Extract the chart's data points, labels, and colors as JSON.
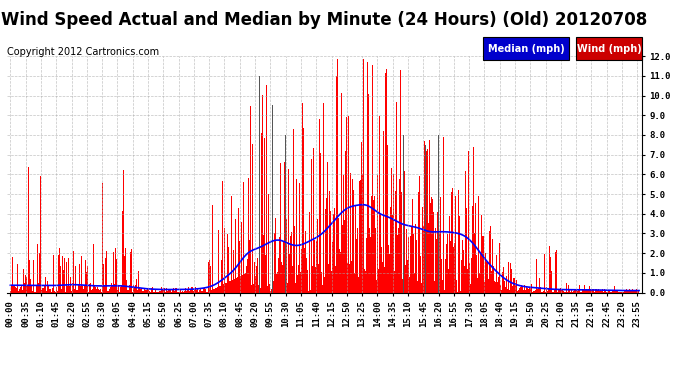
{
  "title": "Wind Speed Actual and Median by Minute (24 Hours) (Old) 20120708",
  "copyright": "Copyright 2012 Cartronics.com",
  "legend_median_label": "Median (mph)",
  "legend_wind_label": "Wind (mph)",
  "background_color": "#FFFFFF",
  "plot_background": "#FFFFFF",
  "grid_color": "#AAAAAA",
  "ylim": [
    0.0,
    12.0
  ],
  "yticks": [
    0.0,
    1.0,
    2.0,
    3.0,
    4.0,
    5.0,
    6.0,
    7.0,
    8.0,
    9.0,
    10.0,
    11.0,
    12.0
  ],
  "title_fontsize": 12,
  "copyright_fontsize": 7,
  "tick_fontsize": 6.5,
  "bar_color": "#FF0000",
  "gray_bar_color": "#555555",
  "line_color": "#0000FF",
  "line_width": 1.2,
  "bar_width": 1.0,
  "num_minutes": 1440,
  "random_seed": 12345,
  "tick_step": 35
}
